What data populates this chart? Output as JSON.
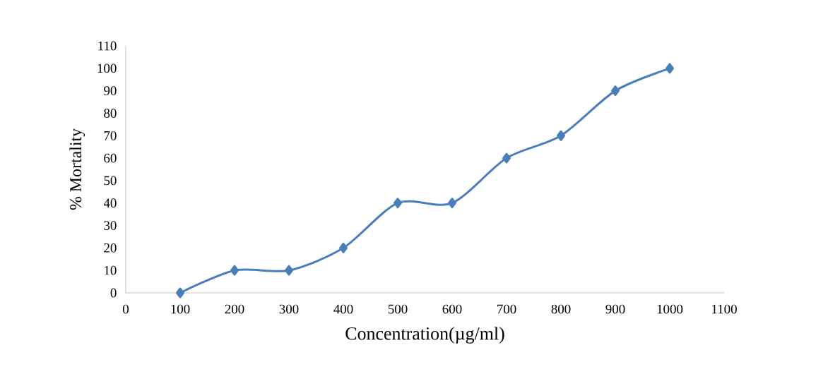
{
  "chart_data": {
    "type": "line",
    "xlabel": "Concentration(µg/ml)",
    "ylabel": "% Mortality",
    "x": [
      100,
      200,
      300,
      400,
      500,
      600,
      700,
      800,
      900,
      1000
    ],
    "series": [
      {
        "color": "#4a7ebb",
        "values": [
          0,
          10,
          10,
          20,
          40,
          40,
          60,
          70,
          90,
          100
        ]
      }
    ],
    "xlim": [
      0,
      1100
    ],
    "xticks": [
      0,
      100,
      200,
      300,
      400,
      500,
      600,
      700,
      800,
      900,
      1000,
      1100
    ],
    "ylim": [
      0,
      110
    ],
    "yticks": [
      0,
      10,
      20,
      30,
      40,
      50,
      60,
      70,
      80,
      90,
      100,
      110
    ],
    "marker": "diamond",
    "line_style": "solid"
  }
}
